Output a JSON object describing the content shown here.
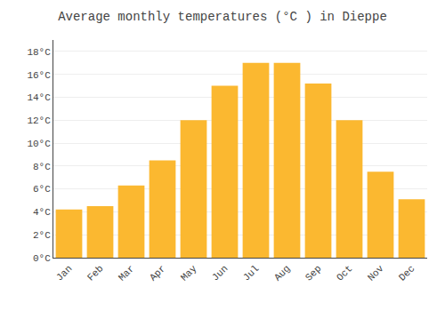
{
  "chart_data": {
    "type": "bar",
    "title": "Average monthly temperatures (°C ) in Dieppe",
    "categories": [
      "Jan",
      "Feb",
      "Mar",
      "Apr",
      "May",
      "Jun",
      "Jul",
      "Aug",
      "Sep",
      "Oct",
      "Nov",
      "Dec"
    ],
    "values": [
      4.2,
      4.5,
      6.3,
      8.5,
      12.0,
      15.0,
      17.0,
      17.0,
      15.2,
      12.0,
      7.5,
      5.1
    ],
    "color": "#FBB830",
    "ylim": [
      0,
      19
    ],
    "yticks": [
      {
        "value": 0,
        "label": "0°C"
      },
      {
        "value": 2,
        "label": "2°C"
      },
      {
        "value": 4,
        "label": "4°C"
      },
      {
        "value": 6,
        "label": "6°C"
      },
      {
        "value": 8,
        "label": "8°C"
      },
      {
        "value": 10,
        "label": "10°C"
      },
      {
        "value": 12,
        "label": "12°C"
      },
      {
        "value": 14,
        "label": "14°C"
      },
      {
        "value": 16,
        "label": "16°C"
      },
      {
        "value": 18,
        "label": "18°C"
      }
    ],
    "grid": true
  }
}
